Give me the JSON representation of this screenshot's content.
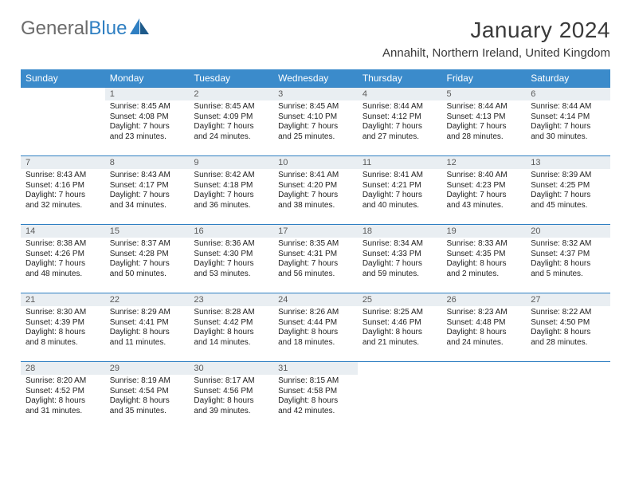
{
  "logo": {
    "word1": "General",
    "word2": "Blue"
  },
  "title": "January 2024",
  "subtitle": "Annahilt, Northern Ireland, United Kingdom",
  "colors": {
    "header_bg": "#3b8bcb",
    "header_fg": "#ffffff",
    "daynum_bg": "#e9eef2",
    "row_border": "#2f7fc2",
    "logo_gray": "#6b6b6b",
    "logo_blue": "#2f7fc2",
    "text": "#222222"
  },
  "day_headers": [
    "Sunday",
    "Monday",
    "Tuesday",
    "Wednesday",
    "Thursday",
    "Friday",
    "Saturday"
  ],
  "weeks": [
    [
      {
        "n": "",
        "l1": "",
        "l2": "",
        "l3": "",
        "l4": ""
      },
      {
        "n": "1",
        "l1": "Sunrise: 8:45 AM",
        "l2": "Sunset: 4:08 PM",
        "l3": "Daylight: 7 hours",
        "l4": "and 23 minutes."
      },
      {
        "n": "2",
        "l1": "Sunrise: 8:45 AM",
        "l2": "Sunset: 4:09 PM",
        "l3": "Daylight: 7 hours",
        "l4": "and 24 minutes."
      },
      {
        "n": "3",
        "l1": "Sunrise: 8:45 AM",
        "l2": "Sunset: 4:10 PM",
        "l3": "Daylight: 7 hours",
        "l4": "and 25 minutes."
      },
      {
        "n": "4",
        "l1": "Sunrise: 8:44 AM",
        "l2": "Sunset: 4:12 PM",
        "l3": "Daylight: 7 hours",
        "l4": "and 27 minutes."
      },
      {
        "n": "5",
        "l1": "Sunrise: 8:44 AM",
        "l2": "Sunset: 4:13 PM",
        "l3": "Daylight: 7 hours",
        "l4": "and 28 minutes."
      },
      {
        "n": "6",
        "l1": "Sunrise: 8:44 AM",
        "l2": "Sunset: 4:14 PM",
        "l3": "Daylight: 7 hours",
        "l4": "and 30 minutes."
      }
    ],
    [
      {
        "n": "7",
        "l1": "Sunrise: 8:43 AM",
        "l2": "Sunset: 4:16 PM",
        "l3": "Daylight: 7 hours",
        "l4": "and 32 minutes."
      },
      {
        "n": "8",
        "l1": "Sunrise: 8:43 AM",
        "l2": "Sunset: 4:17 PM",
        "l3": "Daylight: 7 hours",
        "l4": "and 34 minutes."
      },
      {
        "n": "9",
        "l1": "Sunrise: 8:42 AM",
        "l2": "Sunset: 4:18 PM",
        "l3": "Daylight: 7 hours",
        "l4": "and 36 minutes."
      },
      {
        "n": "10",
        "l1": "Sunrise: 8:41 AM",
        "l2": "Sunset: 4:20 PM",
        "l3": "Daylight: 7 hours",
        "l4": "and 38 minutes."
      },
      {
        "n": "11",
        "l1": "Sunrise: 8:41 AM",
        "l2": "Sunset: 4:21 PM",
        "l3": "Daylight: 7 hours",
        "l4": "and 40 minutes."
      },
      {
        "n": "12",
        "l1": "Sunrise: 8:40 AM",
        "l2": "Sunset: 4:23 PM",
        "l3": "Daylight: 7 hours",
        "l4": "and 43 minutes."
      },
      {
        "n": "13",
        "l1": "Sunrise: 8:39 AM",
        "l2": "Sunset: 4:25 PM",
        "l3": "Daylight: 7 hours",
        "l4": "and 45 minutes."
      }
    ],
    [
      {
        "n": "14",
        "l1": "Sunrise: 8:38 AM",
        "l2": "Sunset: 4:26 PM",
        "l3": "Daylight: 7 hours",
        "l4": "and 48 minutes."
      },
      {
        "n": "15",
        "l1": "Sunrise: 8:37 AM",
        "l2": "Sunset: 4:28 PM",
        "l3": "Daylight: 7 hours",
        "l4": "and 50 minutes."
      },
      {
        "n": "16",
        "l1": "Sunrise: 8:36 AM",
        "l2": "Sunset: 4:30 PM",
        "l3": "Daylight: 7 hours",
        "l4": "and 53 minutes."
      },
      {
        "n": "17",
        "l1": "Sunrise: 8:35 AM",
        "l2": "Sunset: 4:31 PM",
        "l3": "Daylight: 7 hours",
        "l4": "and 56 minutes."
      },
      {
        "n": "18",
        "l1": "Sunrise: 8:34 AM",
        "l2": "Sunset: 4:33 PM",
        "l3": "Daylight: 7 hours",
        "l4": "and 59 minutes."
      },
      {
        "n": "19",
        "l1": "Sunrise: 8:33 AM",
        "l2": "Sunset: 4:35 PM",
        "l3": "Daylight: 8 hours",
        "l4": "and 2 minutes."
      },
      {
        "n": "20",
        "l1": "Sunrise: 8:32 AM",
        "l2": "Sunset: 4:37 PM",
        "l3": "Daylight: 8 hours",
        "l4": "and 5 minutes."
      }
    ],
    [
      {
        "n": "21",
        "l1": "Sunrise: 8:30 AM",
        "l2": "Sunset: 4:39 PM",
        "l3": "Daylight: 8 hours",
        "l4": "and 8 minutes."
      },
      {
        "n": "22",
        "l1": "Sunrise: 8:29 AM",
        "l2": "Sunset: 4:41 PM",
        "l3": "Daylight: 8 hours",
        "l4": "and 11 minutes."
      },
      {
        "n": "23",
        "l1": "Sunrise: 8:28 AM",
        "l2": "Sunset: 4:42 PM",
        "l3": "Daylight: 8 hours",
        "l4": "and 14 minutes."
      },
      {
        "n": "24",
        "l1": "Sunrise: 8:26 AM",
        "l2": "Sunset: 4:44 PM",
        "l3": "Daylight: 8 hours",
        "l4": "and 18 minutes."
      },
      {
        "n": "25",
        "l1": "Sunrise: 8:25 AM",
        "l2": "Sunset: 4:46 PM",
        "l3": "Daylight: 8 hours",
        "l4": "and 21 minutes."
      },
      {
        "n": "26",
        "l1": "Sunrise: 8:23 AM",
        "l2": "Sunset: 4:48 PM",
        "l3": "Daylight: 8 hours",
        "l4": "and 24 minutes."
      },
      {
        "n": "27",
        "l1": "Sunrise: 8:22 AM",
        "l2": "Sunset: 4:50 PM",
        "l3": "Daylight: 8 hours",
        "l4": "and 28 minutes."
      }
    ],
    [
      {
        "n": "28",
        "l1": "Sunrise: 8:20 AM",
        "l2": "Sunset: 4:52 PM",
        "l3": "Daylight: 8 hours",
        "l4": "and 31 minutes."
      },
      {
        "n": "29",
        "l1": "Sunrise: 8:19 AM",
        "l2": "Sunset: 4:54 PM",
        "l3": "Daylight: 8 hours",
        "l4": "and 35 minutes."
      },
      {
        "n": "30",
        "l1": "Sunrise: 8:17 AM",
        "l2": "Sunset: 4:56 PM",
        "l3": "Daylight: 8 hours",
        "l4": "and 39 minutes."
      },
      {
        "n": "31",
        "l1": "Sunrise: 8:15 AM",
        "l2": "Sunset: 4:58 PM",
        "l3": "Daylight: 8 hours",
        "l4": "and 42 minutes."
      },
      {
        "n": "",
        "l1": "",
        "l2": "",
        "l3": "",
        "l4": ""
      },
      {
        "n": "",
        "l1": "",
        "l2": "",
        "l3": "",
        "l4": ""
      },
      {
        "n": "",
        "l1": "",
        "l2": "",
        "l3": "",
        "l4": ""
      }
    ]
  ]
}
